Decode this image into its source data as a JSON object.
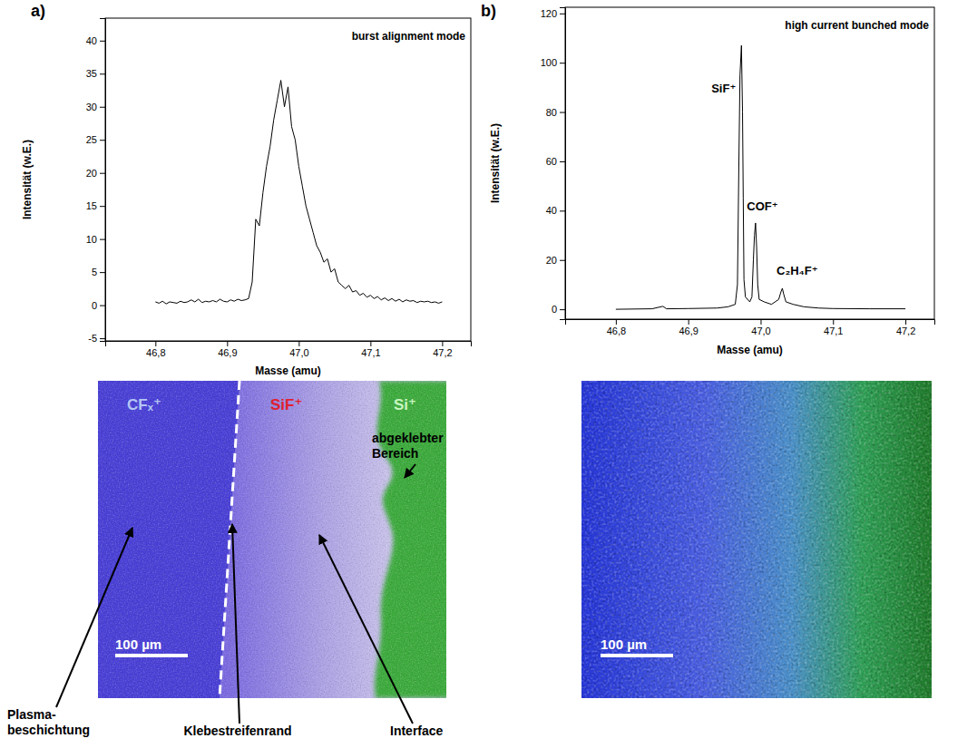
{
  "chart_data": [
    {
      "type": "line",
      "panel": "a)",
      "title": "burst alignment mode",
      "xlabel": "Masse (amu)",
      "ylabel": "Intensität (w.E.)",
      "color": "#000000",
      "xlim": [
        46.73,
        47.24
      ],
      "xticks": [
        {
          "value": 46.8,
          "label": "46,8"
        },
        {
          "value": 46.9,
          "label": "46,9"
        },
        {
          "value": 47.0,
          "label": "47,0"
        },
        {
          "value": 47.1,
          "label": "47,1"
        },
        {
          "value": 47.2,
          "label": "47,2"
        }
      ],
      "ylim": [
        -5.4,
        43.4
      ],
      "yticks": [
        -5,
        0,
        5,
        10,
        15,
        20,
        25,
        30,
        35,
        40
      ],
      "x": [
        46.8,
        46.805,
        46.81,
        46.815,
        46.82,
        46.825,
        46.83,
        46.835,
        46.84,
        46.845,
        46.85,
        46.855,
        46.86,
        46.865,
        46.87,
        46.875,
        46.88,
        46.885,
        46.89,
        46.895,
        46.9,
        46.905,
        46.91,
        46.915,
        46.92,
        46.925,
        46.93,
        46.935,
        46.94,
        46.945,
        46.95,
        46.955,
        46.96,
        46.965,
        46.97,
        46.975,
        46.98,
        46.985,
        46.99,
        46.995,
        47,
        47.005,
        47.01,
        47.015,
        47.02,
        47.025,
        47.03,
        47.035,
        47.04,
        47.045,
        47.05,
        47.055,
        47.06,
        47.065,
        47.07,
        47.075,
        47.08,
        47.085,
        47.09,
        47.095,
        47.1,
        47.105,
        47.11,
        47.115,
        47.12,
        47.125,
        47.13,
        47.135,
        47.14,
        47.145,
        47.15,
        47.155,
        47.16,
        47.165,
        47.17,
        47.175,
        47.18,
        47.185,
        47.19,
        47.195,
        47.2
      ],
      "values": [
        0.5,
        0.3,
        0.6,
        0.2,
        0.5,
        0.4,
        0.3,
        0.6,
        0.4,
        0.5,
        0.8,
        0.5,
        0.9,
        0.4,
        0.6,
        0.5,
        0.7,
        0.5,
        0.9,
        0.6,
        0.5,
        0.8,
        0.6,
        0.9,
        0.7,
        0.8,
        1,
        3.5,
        13,
        12,
        17,
        21,
        24,
        28,
        31,
        34,
        30,
        33,
        27,
        25,
        21,
        18,
        15,
        13,
        11,
        9,
        8,
        6.5,
        7,
        5,
        5.5,
        3.5,
        3,
        2.5,
        3,
        2,
        2.2,
        1.5,
        1.8,
        1.2,
        1.5,
        1,
        1.3,
        0.8,
        1.1,
        0.7,
        1,
        0.6,
        0.9,
        0.5,
        0.8,
        0.6,
        0.7,
        0.4,
        0.6,
        0.5,
        0.6,
        0.4,
        0.5,
        0.3,
        0.5
      ]
    },
    {
      "type": "line",
      "panel": "b)",
      "title": "high current bunched mode",
      "xlabel": "Masse (amu)",
      "ylabel": "Intensität (w.E.)",
      "color": "#000000",
      "xlim": [
        46.73,
        47.24
      ],
      "xticks": [
        {
          "value": 46.8,
          "label": "46,8"
        },
        {
          "value": 46.9,
          "label": "46,9"
        },
        {
          "value": 47.0,
          "label": "47,0"
        },
        {
          "value": 47.1,
          "label": "47,1"
        },
        {
          "value": 47.2,
          "label": "47,2"
        }
      ],
      "ylim": [
        -4,
        122.5
      ],
      "yticks": [
        0,
        20,
        40,
        60,
        80,
        100,
        120
      ],
      "x": [
        46.8,
        46.85,
        46.865,
        46.87,
        46.9,
        46.94,
        46.955,
        46.965,
        46.968,
        46.97,
        46.9715,
        46.9735,
        46.975,
        46.976,
        46.977,
        46.979,
        46.985,
        46.988,
        46.99,
        46.9915,
        46.993,
        46.9945,
        46.996,
        46.998,
        47.005,
        47.015,
        47.025,
        47.028,
        47.03,
        47.032,
        47.035,
        47.045,
        47.06,
        47.08,
        47.1,
        47.15,
        47.2
      ],
      "values": [
        0,
        0.2,
        1.2,
        0.2,
        0.3,
        0.5,
        1,
        2,
        10,
        60,
        95,
        107,
        80,
        45,
        12,
        5,
        3,
        5,
        20,
        30,
        35,
        25,
        10,
        4,
        3,
        2,
        4,
        7,
        8.5,
        6,
        3,
        2,
        1,
        0.5,
        0.3,
        0.2,
        0.2
      ],
      "annotations": [
        {
          "text": "SiF⁺",
          "x": 46.932,
          "y": 88
        },
        {
          "text": "COF⁺",
          "x": 46.981,
          "y": 40
        },
        {
          "text": "C₂H₄F⁺",
          "x": 47.022,
          "y": 14
        }
      ]
    }
  ],
  "images": [
    {
      "labels": [
        {
          "text": "CFₓ⁺",
          "color": "#b4c6f4"
        },
        {
          "text": "SiF⁺",
          "color": "#e0202e"
        },
        {
          "text": "Si⁺",
          "color": "#c8f5c0"
        }
      ],
      "callouts": [
        {
          "lines": [
            "abgeklebter",
            "Bereich"
          ]
        },
        {
          "lines": [
            "Plasma-",
            "beschichtung"
          ]
        },
        {
          "lines": [
            "Klebestreifenrand"
          ]
        },
        {
          "lines": [
            "Interface"
          ]
        }
      ],
      "scale_bar": "100 µm"
    },
    {
      "scale_bar": "100 µm"
    }
  ]
}
